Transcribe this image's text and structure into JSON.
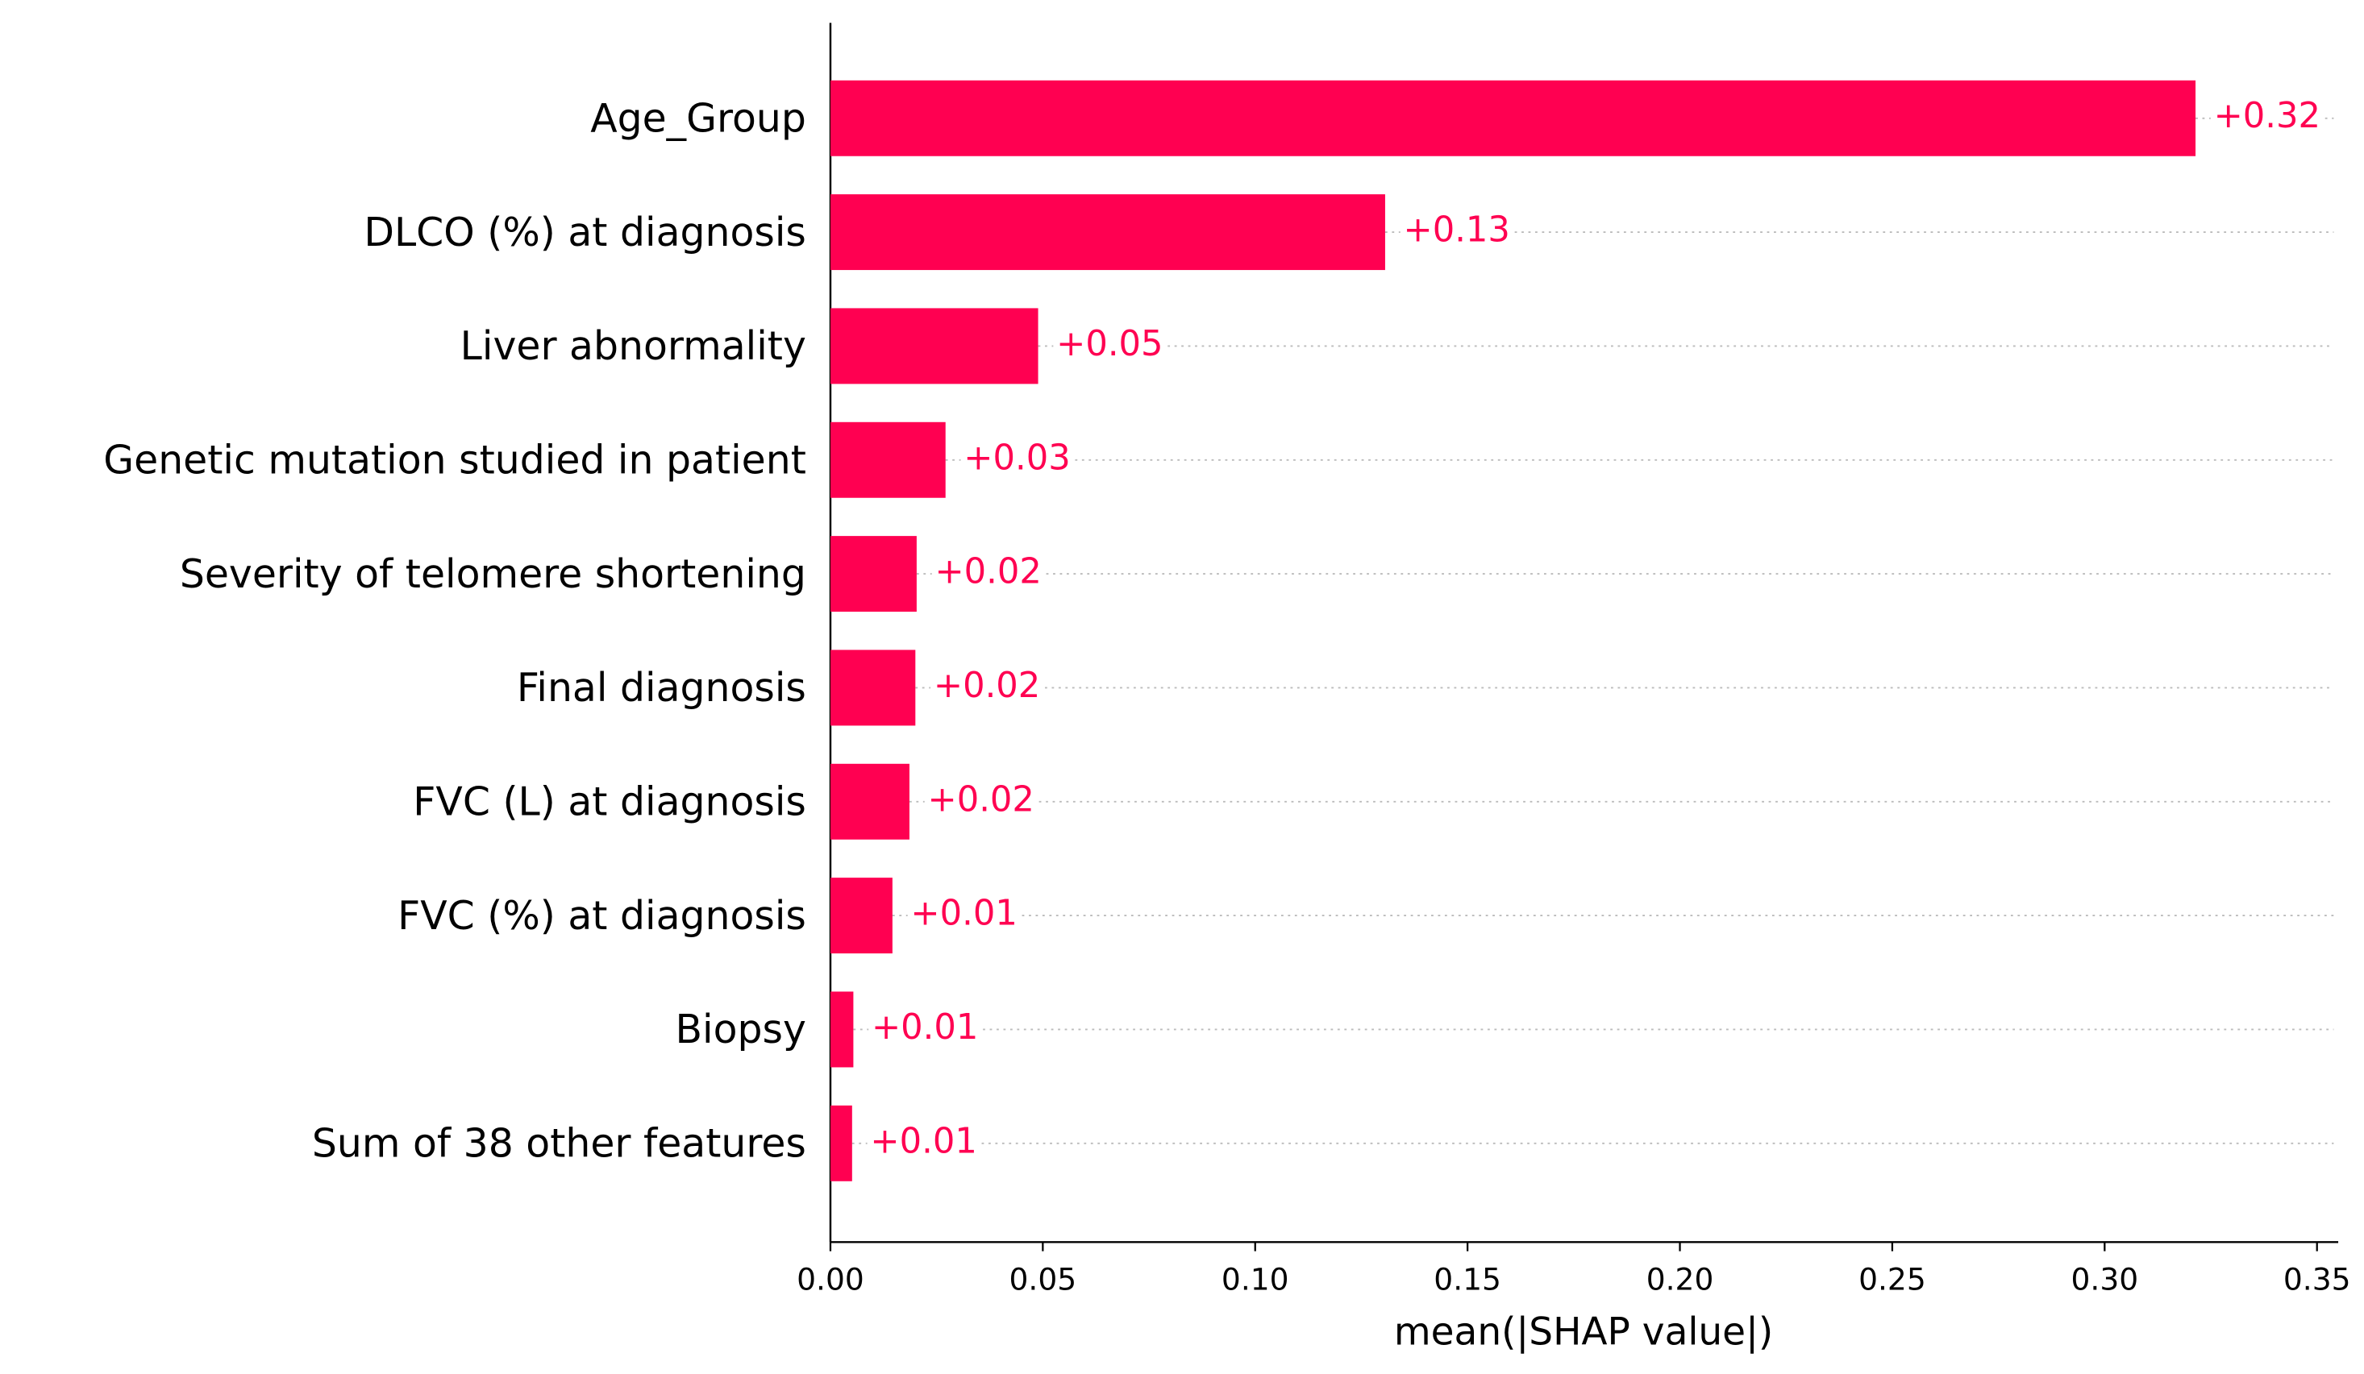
{
  "chart_data": {
    "type": "barh",
    "categories": [
      "Age_Group",
      "DLCO (%) at diagnosis",
      "Liver abnormality",
      "Genetic mutation studied in patient",
      "Severity of telomere shortening",
      "Final diagnosis",
      "FVC (L) at diagnosis",
      "FVC (%) at diagnosis",
      "Biopsy",
      "Sum of 38 other features"
    ],
    "values": [
      0.3214,
      0.1306,
      0.0489,
      0.0271,
      0.0203,
      0.02,
      0.0186,
      0.0146,
      0.0054,
      0.0051
    ],
    "value_labels": [
      "+0.32",
      "+0.13",
      "+0.05",
      "+0.03",
      "+0.02",
      "+0.02",
      "+0.02",
      "+0.01",
      "+0.01",
      "+0.01"
    ],
    "color": "#ff0051",
    "xlabel": "mean(|SHAP value|)",
    "xlim": [
      0,
      0.355
    ],
    "xticks": [
      {
        "value": 0,
        "label": "0.00"
      },
      {
        "value": 0.05,
        "label": "0.05"
      },
      {
        "value": 0.1,
        "label": "0.10"
      },
      {
        "value": 0.15,
        "label": "0.15"
      },
      {
        "value": 0.2,
        "label": "0.20"
      },
      {
        "value": 0.25,
        "label": "0.25"
      },
      {
        "value": 0.3,
        "label": "0.30"
      },
      {
        "value": 0.35,
        "label": "0.35"
      }
    ]
  }
}
